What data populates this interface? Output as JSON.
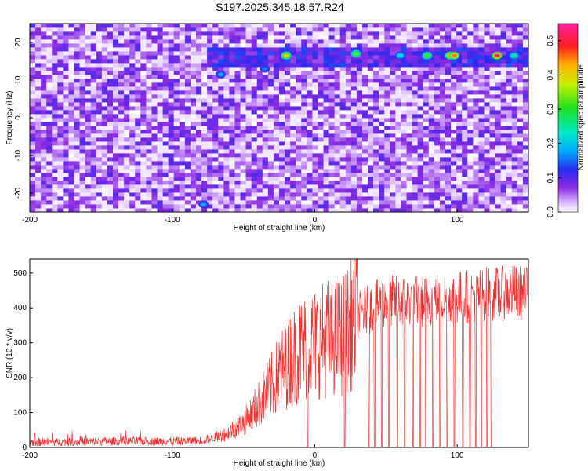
{
  "title": "S197.2025.345.18.57.R24",
  "colors": {
    "line": "#ee3333",
    "axis": "#000000"
  },
  "chart_data": [
    {
      "type": "heatmap",
      "xlabel": "Height of straight line (km)",
      "ylabel": "Frequency (Hz)",
      "xlim": [
        -200,
        150
      ],
      "ylim": [
        -25,
        25
      ],
      "xticks": [
        -200,
        -100,
        0,
        100
      ],
      "yticks": [
        -20,
        -10,
        0,
        10,
        20
      ],
      "colorbar": {
        "label": "Normalized spectral amplitude",
        "range": [
          0.0,
          0.55
        ],
        "ticks": [
          0.0,
          0.1,
          0.2,
          0.3,
          0.4,
          0.5
        ],
        "colormap": "white-purple-blue-cyan-green-yellow-red-magenta"
      },
      "description_features": {
        "background_level": 0.05,
        "strong_band_frequency_hz": 16.5,
        "band_x_range": [
          -75,
          150
        ],
        "hotspots": [
          {
            "x": -20,
            "y": 16.5,
            "v": 0.4
          },
          {
            "x": 29,
            "y": 17,
            "v": 0.33
          },
          {
            "x": 79,
            "y": 16.5,
            "v": 0.32
          },
          {
            "x": 95,
            "y": 16.5,
            "v": 0.42
          },
          {
            "x": 98,
            "y": 16.5,
            "v": 0.45
          },
          {
            "x": 128,
            "y": 16.5,
            "v": 0.52
          },
          {
            "x": -66,
            "y": 11.5,
            "v": 0.18
          },
          {
            "x": -35,
            "y": 13,
            "v": 0.16
          },
          {
            "x": 60,
            "y": 16.5,
            "v": 0.22
          },
          {
            "x": 140,
            "y": 16.5,
            "v": 0.25
          },
          {
            "x": -78,
            "y": -23,
            "v": 0.18
          }
        ]
      }
    },
    {
      "type": "line",
      "xlabel": "Height of straight line (km)",
      "ylabel": "SNR (10 * v/v)",
      "xlim": [
        -200,
        150
      ],
      "ylim": [
        0,
        540
      ],
      "xticks": [
        -200,
        -100,
        0,
        100
      ],
      "yticks": [
        0,
        100,
        200,
        300,
        400,
        500
      ],
      "series": [
        {
          "x": [
            -200,
            -180,
            -160,
            -140,
            -120,
            -100,
            -90,
            -80,
            -70,
            -60,
            -50,
            -40,
            -30,
            -20,
            -10,
            0,
            10,
            20,
            30,
            40,
            50,
            60,
            70,
            80,
            90,
            100,
            110,
            120,
            130,
            140,
            150
          ],
          "y": [
            15,
            16,
            17,
            18,
            18,
            18,
            19,
            20,
            28,
            45,
            70,
            120,
            180,
            240,
            280,
            300,
            315,
            320,
            380,
            400,
            420,
            420,
            420,
            420,
            430,
            430,
            435,
            440,
            440,
            445,
            440
          ],
          "dropouts_x": [
            -5,
            21,
            38,
            42,
            47,
            52,
            58,
            63,
            69,
            74,
            78,
            83,
            88,
            93,
            98,
            104,
            109,
            113,
            117,
            121,
            124
          ]
        }
      ]
    }
  ]
}
